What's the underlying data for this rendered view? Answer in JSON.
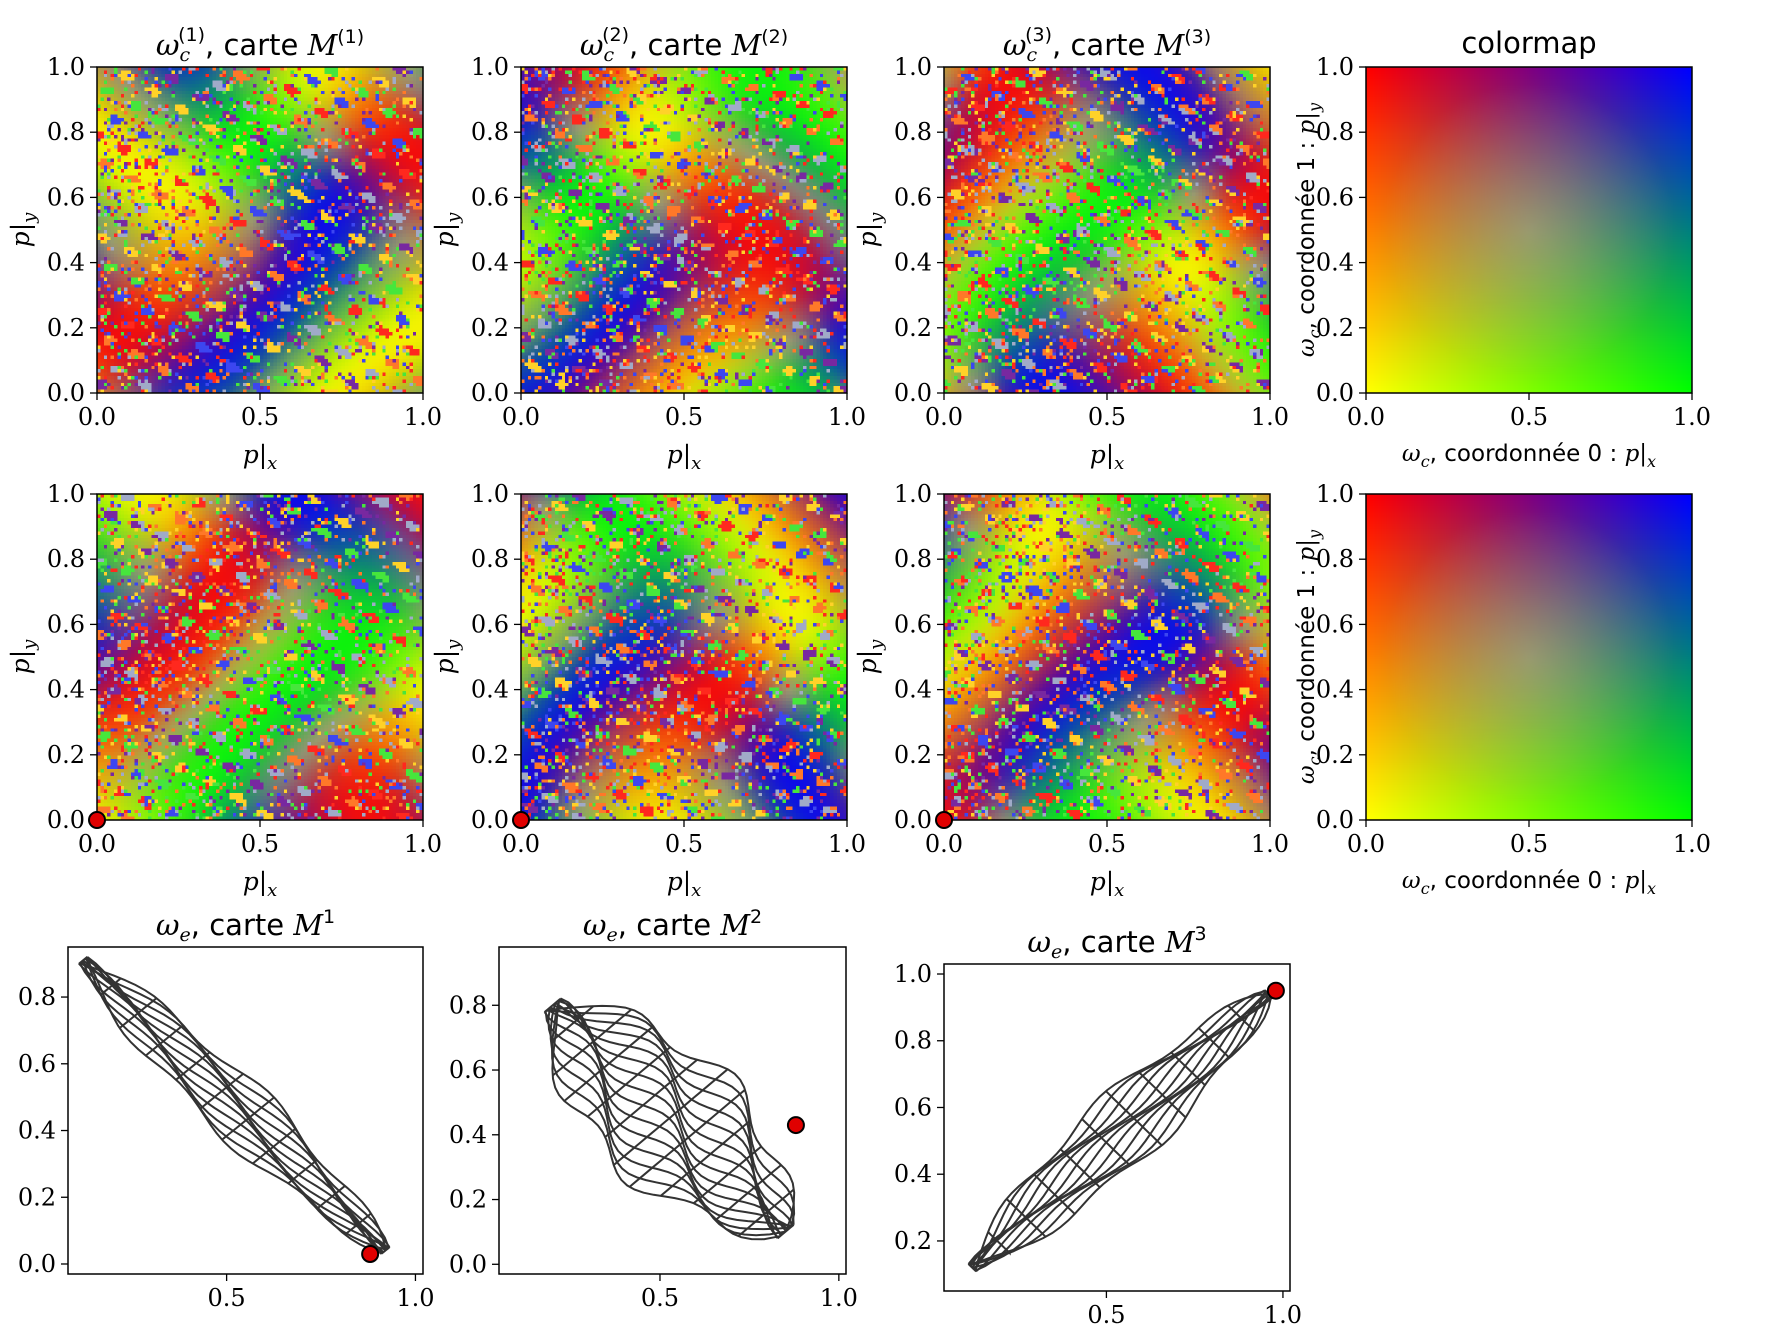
{
  "chart_data": [
    {
      "type": "heatmap",
      "panel": "row1-col1",
      "title_sym": "ω",
      "title_sub": "c",
      "title_sup": "(1)",
      "title_txt": ", carte ",
      "title_map": "M",
      "title_map_sup": "(1)",
      "xlabel": "p|x",
      "ylabel": "p|y",
      "xlim": [
        0,
        1
      ],
      "ylim": [
        0,
        1
      ],
      "xticks": [
        "0.0",
        "0.5",
        "1.0"
      ],
      "yticks": [
        "0.0",
        "0.2",
        "0.4",
        "0.6",
        "0.8",
        "1.0"
      ],
      "seed": 11,
      "marker": null
    },
    {
      "type": "heatmap",
      "panel": "row1-col2",
      "title_sym": "ω",
      "title_sub": "c",
      "title_sup": "(2)",
      "title_txt": ", carte ",
      "title_map": "M",
      "title_map_sup": "(2)",
      "xlabel": "p|x",
      "ylabel": "p|y",
      "xlim": [
        0,
        1
      ],
      "ylim": [
        0,
        1
      ],
      "xticks": [
        "0.0",
        "0.5",
        "1.0"
      ],
      "yticks": [
        "0.0",
        "0.2",
        "0.4",
        "0.6",
        "0.8",
        "1.0"
      ],
      "seed": 23,
      "marker": null
    },
    {
      "type": "heatmap",
      "panel": "row1-col3",
      "title_sym": "ω",
      "title_sub": "c",
      "title_sup": "(3)",
      "title_txt": ", carte ",
      "title_map": "M",
      "title_map_sup": "(3)",
      "xlabel": "p|x",
      "ylabel": "p|y",
      "xlim": [
        0,
        1
      ],
      "ylim": [
        0,
        1
      ],
      "xticks": [
        "0.0",
        "0.5",
        "1.0"
      ],
      "yticks": [
        "0.0",
        "0.2",
        "0.4",
        "0.6",
        "0.8",
        "1.0"
      ],
      "seed": 37,
      "marker": null
    },
    {
      "type": "heatmap",
      "panel": "row1-col4",
      "title": "colormap",
      "xlabel": "ω_c, coordonnée 0 : p|x",
      "ylabel": "ω_c, coordonnée 1 : p|y",
      "xlim": [
        0,
        1
      ],
      "ylim": [
        0,
        1
      ],
      "xticks": [
        "0.0",
        "0.5",
        "1.0"
      ],
      "yticks": [
        "0.0",
        "0.2",
        "0.4",
        "0.6",
        "0.8",
        "1.0"
      ],
      "corners": {
        "top_left": "#ff0000",
        "top_right": "#0000ff",
        "bottom_left": "#ffff00",
        "bottom_right": "#00ff00"
      }
    },
    {
      "type": "heatmap",
      "panel": "row2-col1",
      "xlabel": "p|x",
      "ylabel": "p|y",
      "xlim": [
        0,
        1
      ],
      "ylim": [
        0,
        1
      ],
      "xticks": [
        "0.0",
        "0.5",
        "1.0"
      ],
      "yticks": [
        "0.0",
        "0.2",
        "0.4",
        "0.6",
        "0.8",
        "1.0"
      ],
      "seed": 41,
      "marker": {
        "x": 0.0,
        "y": 0.0,
        "color": "#e00000"
      }
    },
    {
      "type": "heatmap",
      "panel": "row2-col2",
      "xlabel": "p|x",
      "ylabel": "p|y",
      "xlim": [
        0,
        1
      ],
      "ylim": [
        0,
        1
      ],
      "xticks": [
        "0.0",
        "0.5",
        "1.0"
      ],
      "yticks": [
        "0.0",
        "0.2",
        "0.4",
        "0.6",
        "0.8",
        "1.0"
      ],
      "seed": 53,
      "marker": {
        "x": 0.0,
        "y": 0.0,
        "color": "#e00000"
      }
    },
    {
      "type": "heatmap",
      "panel": "row2-col3",
      "xlabel": "p|x",
      "ylabel": "p|y",
      "xlim": [
        0,
        1
      ],
      "ylim": [
        0,
        1
      ],
      "xticks": [
        "0.0",
        "0.5",
        "1.0"
      ],
      "yticks": [
        "0.0",
        "0.2",
        "0.4",
        "0.6",
        "0.8",
        "1.0"
      ],
      "seed": 67,
      "marker": {
        "x": 0.0,
        "y": 0.0,
        "color": "#e00000"
      }
    },
    {
      "type": "heatmap",
      "panel": "row2-col4",
      "xlabel": "ω_c, coordonnée 0 : p|x",
      "ylabel": "ω_c, coordonnée 1 : p|y",
      "xlim": [
        0,
        1
      ],
      "ylim": [
        0,
        1
      ],
      "xticks": [
        "0.0",
        "0.5",
        "1.0"
      ],
      "yticks": [
        "0.0",
        "0.2",
        "0.4",
        "0.6",
        "0.8",
        "1.0"
      ],
      "corners": {
        "top_left": "#ff0000",
        "top_right": "#0000ff",
        "bottom_left": "#ffff00",
        "bottom_right": "#00ff00"
      }
    },
    {
      "type": "line",
      "panel": "row3-col1",
      "title_sym": "ω",
      "title_sub": "e",
      "title_txt": ", carte ",
      "title_map": "M",
      "title_map_sup": "1",
      "xlim": [
        0.08,
        1.02
      ],
      "ylim": [
        -0.03,
        0.95
      ],
      "xticks": [
        "0.5",
        "1.0"
      ],
      "xtick_values": [
        0.5,
        1.0
      ],
      "yticks": [
        "0.0",
        "0.2",
        "0.4",
        "0.6",
        "0.8"
      ],
      "ytick_values": [
        0.0,
        0.2,
        0.4,
        0.6,
        0.8
      ],
      "grid_mesh": {
        "axis_start": [
          0.12,
          0.91
        ],
        "axis_end": [
          0.92,
          0.04
        ],
        "half_width": 0.08,
        "rows": 11,
        "cols": 11,
        "warp": 0.015
      },
      "marker": {
        "x": 0.88,
        "y": 0.03,
        "color": "#e00000"
      }
    },
    {
      "type": "line",
      "panel": "row3-col2",
      "title_sym": "ω",
      "title_sub": "e",
      "title_txt": ", carte ",
      "title_map": "M",
      "title_map_sup": "2",
      "xlim": [
        0.05,
        1.02
      ],
      "ylim": [
        -0.03,
        0.98
      ],
      "xticks": [
        "0.5",
        "1.0"
      ],
      "xtick_values": [
        0.5,
        1.0
      ],
      "yticks": [
        "0.0",
        "0.2",
        "0.4",
        "0.6",
        "0.8"
      ],
      "ytick_values": [
        0.0,
        0.2,
        0.4,
        0.6,
        0.8
      ],
      "grid_mesh": {
        "axis_start": [
          0.2,
          0.8
        ],
        "axis_end": [
          0.85,
          0.1
        ],
        "half_width": 0.2,
        "rows": 14,
        "cols": 12,
        "warp": 0.03
      },
      "marker": {
        "x": 0.88,
        "y": 0.43,
        "color": "#e00000"
      }
    },
    {
      "type": "line",
      "panel": "row3-col3",
      "title_sym": "ω",
      "title_sub": "e",
      "title_txt": ", carte ",
      "title_map": "M",
      "title_map_sup": "3",
      "xlim": [
        0.04,
        1.02
      ],
      "ylim": [
        0.05,
        1.03
      ],
      "xticks": [
        "0.5",
        "1.0"
      ],
      "xtick_values": [
        0.5,
        1.0
      ],
      "yticks": [
        "0.2",
        "0.4",
        "0.6",
        "0.8",
        "1.0"
      ],
      "ytick_values": [
        0.2,
        0.4,
        0.6,
        0.8,
        1.0
      ],
      "grid_mesh": {
        "axis_start": [
          0.12,
          0.12
        ],
        "axis_end": [
          0.96,
          0.94
        ],
        "half_width": 0.1,
        "rows": 11,
        "cols": 11,
        "warp": 0.015
      },
      "marker": {
        "x": 0.98,
        "y": 0.95,
        "color": "#e00000"
      }
    }
  ],
  "colors": {
    "mesh_line": "#333333",
    "marker_fill": "#e00000",
    "marker_edge": "#000000"
  }
}
